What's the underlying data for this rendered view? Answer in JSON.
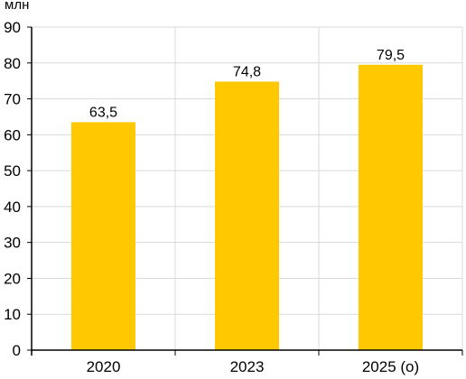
{
  "chart_data": {
    "type": "bar",
    "unit_label": "млн",
    "categories": [
      "2020",
      "2023",
      "2025 (о)"
    ],
    "values": [
      63.5,
      74.8,
      79.5
    ],
    "data_labels": [
      "63,5",
      "74,8",
      "79,5"
    ],
    "ylim": [
      0,
      90
    ],
    "yticks": [
      0,
      10,
      20,
      30,
      40,
      50,
      60,
      70,
      80,
      90
    ],
    "grid": true,
    "bar_color": "#FFC800",
    "grid_color": "#D9D9D9",
    "axis_color": "#000000"
  }
}
